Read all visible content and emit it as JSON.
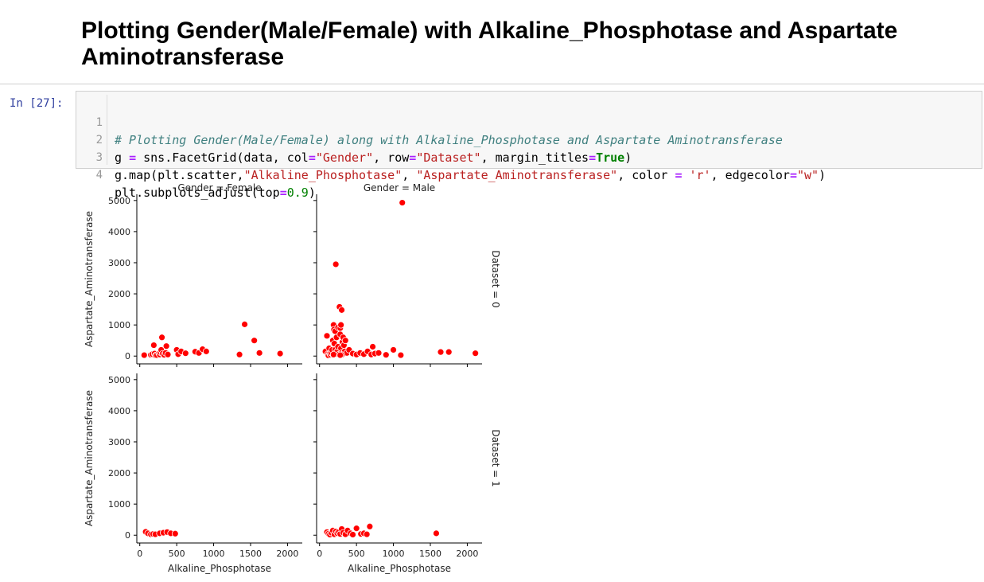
{
  "heading": "Plotting Gender(Male/Female) with Alkaline_Phosphotase and Aspartate Aminotransferase",
  "cell": {
    "prompt": "In [27]:",
    "line_numbers": [
      "1",
      "2",
      "3",
      "4"
    ],
    "line1": {
      "comment": "# Plotting Gender(Male/Female) along with Alkaline_Phosphotase and Aspartate Aminotransferase"
    },
    "line2": {
      "a": "g ",
      "op1": "=",
      "b": " sns.FacetGrid(data, col",
      "op2": "=",
      "s1": "\"Gender\"",
      "c": ", row",
      "op3": "=",
      "s2": "\"Dataset\"",
      "d": ", margin_titles",
      "op4": "=",
      "kw": "True",
      "e": ")"
    },
    "line3": {
      "a": "g.map(plt.scatter,",
      "s1": "\"Alkaline_Phosphotase\"",
      "b": ", ",
      "s2": "\"Aspartate_Aminotransferase\"",
      "c": ", color ",
      "op1": "=",
      "d": " ",
      "s3": "'r'",
      "e": ", edgecolor",
      "op2": "=",
      "s4": "\"w\"",
      "f": ")"
    },
    "line4": {
      "a": "plt.subplots_adjust(top",
      "op": "=",
      "num": "0.9",
      "b": ")"
    }
  },
  "chart_data": {
    "type": "scatter",
    "layout": "facet-grid 2x2",
    "marker_color": "#ff0000",
    "edge_color": "#ffffff",
    "col_titles": [
      "Gender = Female",
      "Gender = Male"
    ],
    "row_titles": [
      "Dataset = 0",
      "Dataset = 1"
    ],
    "xlabel": "Alkaline_Phosphotase",
    "ylabel": "Aspartate_Aminotransferase",
    "xlim": [
      -40,
      2200
    ],
    "ylim": [
      -250,
      5200
    ],
    "xticks": [
      0,
      500,
      1000,
      1500,
      2000
    ],
    "yticks": [
      0,
      1000,
      2000,
      3000,
      4000,
      5000
    ],
    "xtick_labels": [
      "0",
      "500",
      "1000",
      "1500",
      "2000"
    ],
    "ytick_labels": [
      "0",
      "1000",
      "2000",
      "3000",
      "4000",
      "5000"
    ],
    "panels": [
      {
        "row": 0,
        "col": 0,
        "x": [
          60,
          150,
          170,
          190,
          200,
          215,
          230,
          260,
          270,
          280,
          290,
          300,
          310,
          330,
          350,
          360,
          380,
          500,
          520,
          560,
          620,
          750,
          800,
          850,
          900,
          1350,
          1420,
          1550,
          1620,
          1900
        ],
        "y": [
          30,
          40,
          60,
          350,
          80,
          20,
          30,
          90,
          50,
          120,
          200,
          600,
          80,
          40,
          100,
          320,
          50,
          200,
          60,
          150,
          90,
          140,
          100,
          220,
          150,
          50,
          1020,
          500,
          100,
          80
        ]
      },
      {
        "row": 0,
        "col": 1,
        "x": [
          80,
          100,
          110,
          120,
          130,
          140,
          150,
          160,
          170,
          180,
          185,
          190,
          195,
          200,
          200,
          210,
          210,
          220,
          220,
          230,
          240,
          250,
          250,
          260,
          270,
          280,
          280,
          290,
          290,
          300,
          300,
          310,
          320,
          330,
          340,
          350,
          370,
          400,
          450,
          500,
          550,
          600,
          650,
          700,
          720,
          750,
          800,
          900,
          1000,
          1100,
          1120,
          1640,
          1750,
          2110,
          190,
          300,
          280
        ],
        "y": [
          150,
          650,
          60,
          20,
          250,
          80,
          40,
          100,
          200,
          500,
          30,
          1000,
          850,
          60,
          400,
          200,
          800,
          100,
          2950,
          600,
          150,
          300,
          920,
          50,
          1580,
          700,
          900,
          250,
          1000,
          1480,
          100,
          450,
          600,
          350,
          150,
          500,
          100,
          200,
          80,
          50,
          100,
          60,
          150,
          50,
          300,
          80,
          100,
          40,
          200,
          30,
          4930,
          130,
          130,
          90,
          50,
          40,
          30
        ]
      },
      {
        "row": 1,
        "col": 0,
        "x": [
          80,
          110,
          150,
          180,
          210,
          270,
          320,
          370,
          420,
          480
        ],
        "y": [
          110,
          60,
          30,
          40,
          30,
          60,
          80,
          100,
          60,
          50
        ]
      },
      {
        "row": 1,
        "col": 1,
        "x": [
          100,
          120,
          140,
          160,
          180,
          200,
          220,
          240,
          260,
          280,
          300,
          320,
          350,
          380,
          420,
          450,
          500,
          560,
          600,
          640,
          680,
          1580
        ],
        "y": [
          100,
          50,
          20,
          80,
          150,
          30,
          120,
          60,
          100,
          40,
          200,
          80,
          30,
          150,
          60,
          20,
          220,
          40,
          60,
          30,
          280,
          60
        ]
      }
    ]
  }
}
